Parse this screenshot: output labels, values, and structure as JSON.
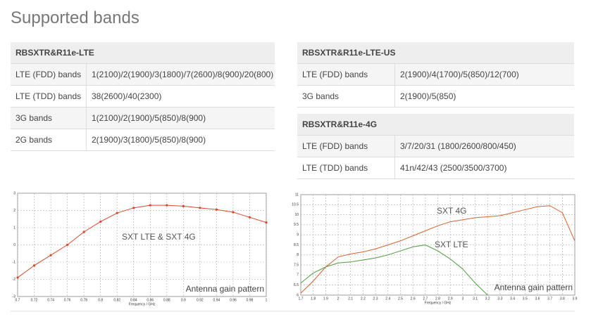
{
  "title": "Supported bands",
  "tables": [
    {
      "title": "RBSXTR&R11e-LTE",
      "rows": [
        [
          "LTE (FDD) bands",
          "1(2100)/2(1900)/3(1800)/7(2600)/8(900)/20(800)"
        ],
        [
          "LTE (TDD) bands",
          "38(2600)/40(2300)"
        ],
        [
          "3G bands",
          "1(2100)/2(1900)/5(850)/8(900)"
        ],
        [
          "2G bands",
          "2(1900)/3(1800)/5(850)/8(900)"
        ]
      ]
    },
    {
      "title": "RBSXTR&R11e-LTE-US",
      "rows": [
        [
          "LTE (FDD) bands",
          "2(1900)/4(1700)/5(850)/12(700)"
        ],
        [
          "3G bands",
          "2(1900)/5(850)"
        ]
      ]
    },
    {
      "title": "RBSXTR&R11e-4G",
      "rows": [
        [
          "LTE (FDD) bands",
          "3/7/20/31 (1800/2600/800/450)"
        ],
        [
          "LTE (TDD) bands",
          "41n/42/43 (2500/3500/3700)"
        ]
      ]
    }
  ],
  "chart_data": [
    {
      "type": "line",
      "annotation": "Antenna gain pattern",
      "x_label": "Frequency / GHz",
      "x": [
        0.7,
        0.72,
        0.74,
        0.76,
        0.78,
        0.8,
        0.82,
        0.84,
        0.86,
        0.88,
        0.9,
        0.92,
        0.94,
        0.96,
        0.98,
        1
      ],
      "series": [
        {
          "name": "SXT LTE  & SXT 4G",
          "color": "#d9472b",
          "markers": true,
          "values": [
            -1.9,
            -1.2,
            -0.6,
            0,
            0.75,
            1.35,
            1.85,
            2.15,
            2.3,
            2.3,
            2.25,
            2.15,
            2.05,
            1.9,
            1.6,
            1.3
          ]
        }
      ],
      "xlim": [
        0.7,
        1
      ],
      "xticks": [
        0.7,
        0.72,
        0.74,
        0.76,
        0.78,
        0.8,
        0.82,
        0.84,
        0.86,
        0.88,
        0.9,
        0.92,
        0.94,
        0.96,
        0.98,
        1
      ],
      "ylim": [
        -3,
        3
      ],
      "yticks": [
        -3,
        -2,
        -1,
        0,
        1,
        2,
        3
      ],
      "grid": true
    },
    {
      "type": "line",
      "annotation": "Antenna gain pattern",
      "x_label": "Frequency / GHz",
      "x": [
        1.7,
        1.8,
        1.9,
        2,
        2.1,
        2.2,
        2.3,
        2.4,
        2.5,
        2.6,
        2.7,
        2.8,
        2.9,
        3,
        3.1,
        3.2,
        3.3,
        3.4,
        3.5,
        3.6,
        3.7,
        3.8,
        3.9
      ],
      "series": [
        {
          "name": "SXT 4G",
          "color": "#d9622b",
          "markers": false,
          "values": [
            6.1,
            6.7,
            7.4,
            7.9,
            8.05,
            8.15,
            8.3,
            8.5,
            8.7,
            8.95,
            9.2,
            9.45,
            9.65,
            9.75,
            9.85,
            9.9,
            9.95,
            10.1,
            10.25,
            10.4,
            10.45,
            10.1,
            8.7
          ]
        },
        {
          "name": "SXT LTE",
          "color": "#4a9a3a",
          "markers": false,
          "values": [
            6.6,
            7.1,
            7.4,
            7.6,
            7.65,
            7.75,
            7.85,
            8.0,
            8.2,
            8.4,
            8.5,
            8.2,
            7.8,
            7.3,
            6.6,
            6.0,
            null,
            null,
            null,
            null,
            null,
            null,
            null
          ]
        }
      ],
      "xlim": [
        1.7,
        3.9
      ],
      "xticks": [
        1.7,
        1.8,
        1.9,
        2,
        2.1,
        2.2,
        2.3,
        2.4,
        2.5,
        2.6,
        2.7,
        2.8,
        2.9,
        3,
        3.1,
        3.2,
        3.3,
        3.4,
        3.5,
        3.6,
        3.7,
        3.8,
        3.9
      ],
      "ylim": [
        6,
        11
      ],
      "yticks": [
        6,
        6.5,
        7,
        7.5,
        8,
        8.5,
        9,
        9.5,
        10,
        10.5,
        11
      ],
      "grid": true
    }
  ]
}
